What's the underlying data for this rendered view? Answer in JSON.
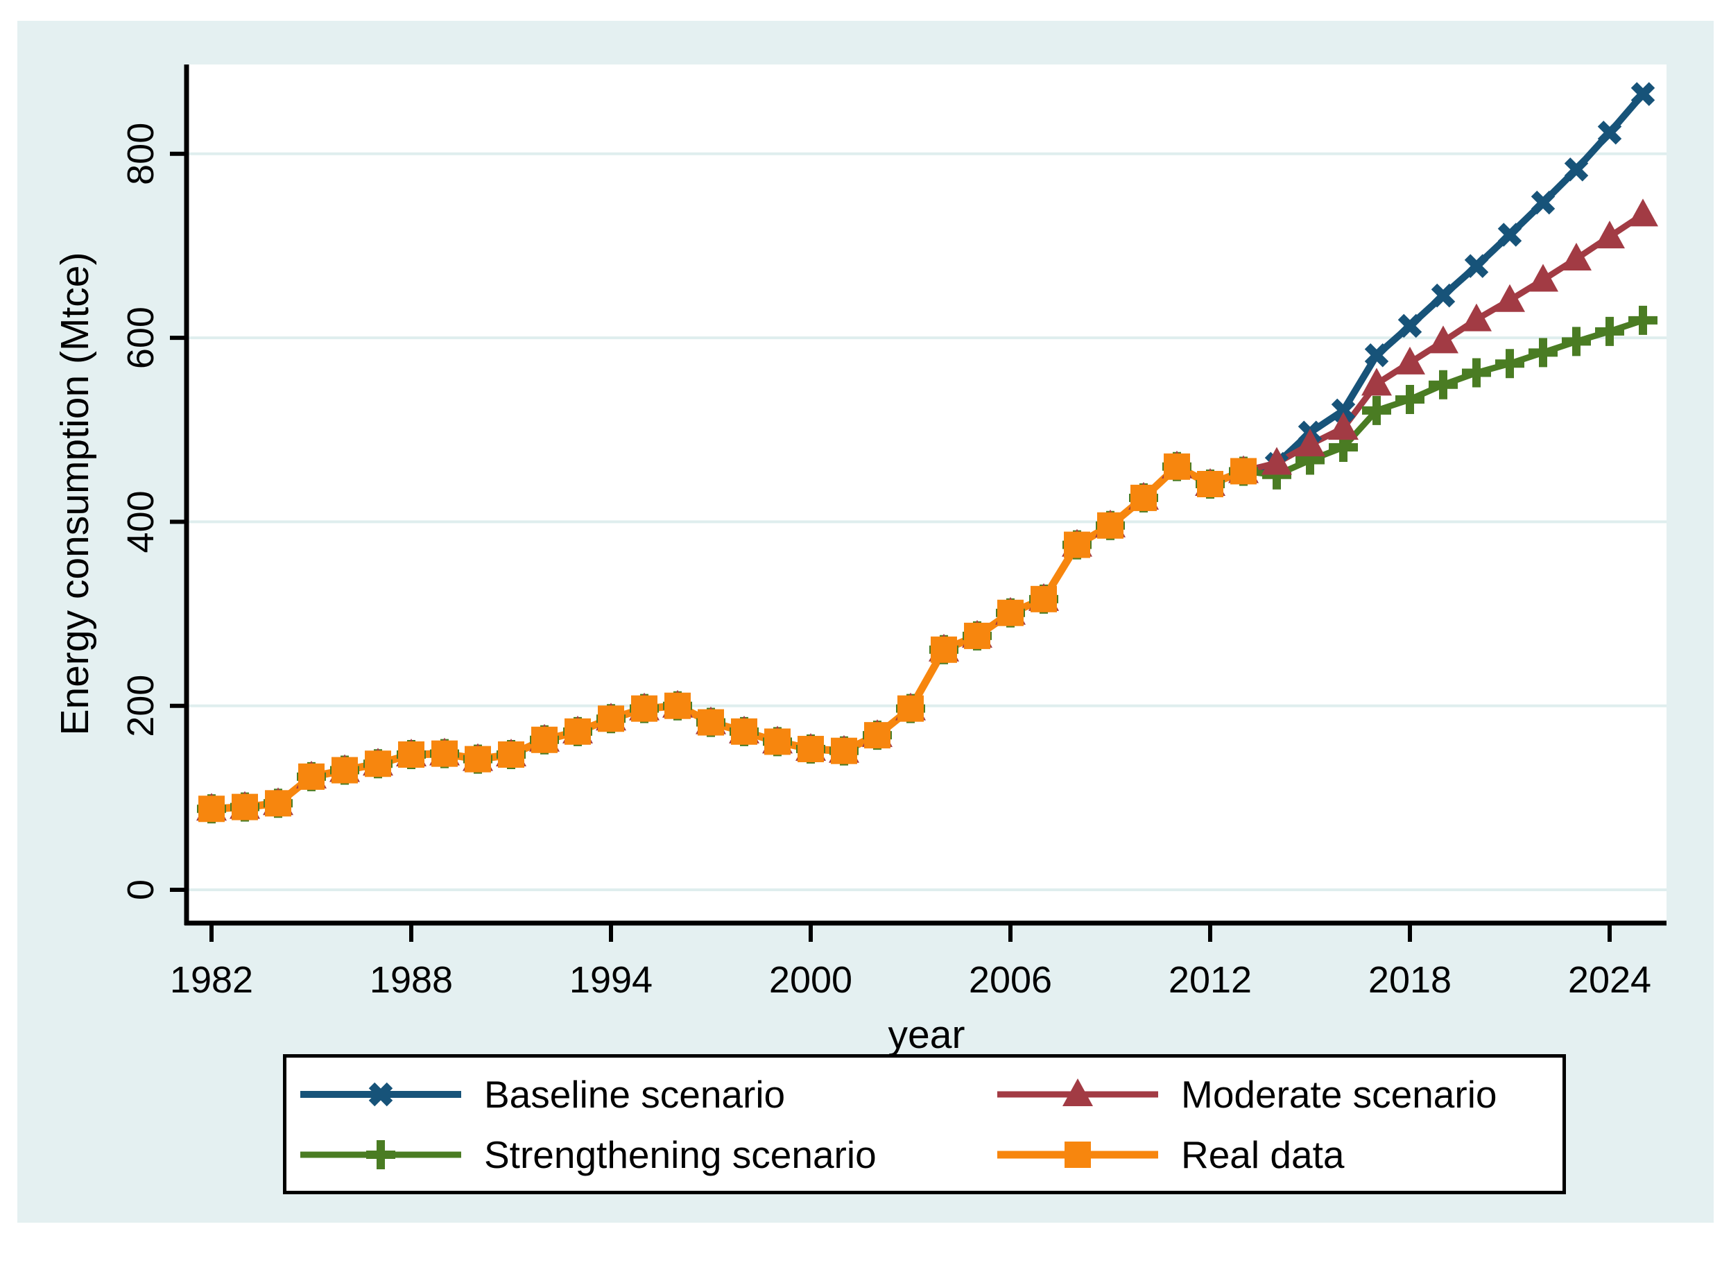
{
  "figure": {
    "background": "#ffffff",
    "graph_area_background": "#e4f0f1",
    "plot_background": "#ffffff",
    "gridline_color": "#dfeeee",
    "axis_color": "#000000",
    "text_color": "#000000",
    "legend_background": "#ffffff",
    "legend_border_color": "#000000"
  },
  "y_axis": {
    "title": "Energy consumption (Mtce)",
    "ticks": [
      0,
      200,
      400,
      600,
      800
    ]
  },
  "x_axis": {
    "title": "year",
    "ticks": [
      1982,
      1988,
      1994,
      2000,
      2006,
      2012,
      2018,
      2024
    ]
  },
  "legend": {
    "entries": [
      {
        "id": "baseline",
        "label": "Baseline scenario"
      },
      {
        "id": "moderate",
        "label": "Moderate scenario"
      },
      {
        "id": "strengthening",
        "label": "Strengthening scenario"
      },
      {
        "id": "real",
        "label": "Real data"
      }
    ]
  },
  "chart_data": {
    "type": "line",
    "title": "",
    "xlabel": "year",
    "ylabel": "Energy consumption (Mtce)",
    "x_range": [
      1980.7,
      2026.5
    ],
    "y_range": [
      -35,
      897
    ],
    "grid": "horizontal",
    "legend_position": "bottom",
    "series": [
      {
        "id": "baseline",
        "name": "Baseline scenario",
        "color": "#175379",
        "marker": "x",
        "years": [
          1982,
          1983,
          1984,
          1985,
          1986,
          1987,
          1988,
          1989,
          1990,
          1991,
          1992,
          1993,
          1994,
          1995,
          1996,
          1997,
          1998,
          1999,
          2000,
          2001,
          2002,
          2003,
          2004,
          2005,
          2006,
          2007,
          2008,
          2009,
          2010,
          2011,
          2012,
          2013,
          2014,
          2015,
          2016,
          2017,
          2018,
          2019,
          2020,
          2021,
          2022,
          2023,
          2024,
          2025
        ],
        "values": [
          88,
          90,
          94,
          123,
          130,
          137,
          147,
          148,
          142,
          147,
          163,
          172,
          186,
          197,
          200,
          182,
          172,
          161,
          153,
          151,
          168,
          197,
          261,
          276,
          301,
          316,
          375,
          396,
          426,
          460,
          441,
          455,
          463,
          497,
          521,
          581,
          613,
          646,
          678,
          712,
          747,
          783,
          823,
          865
        ]
      },
      {
        "id": "moderate",
        "name": "Moderate scenario",
        "color": "#a23b44",
        "marker": "triangle",
        "years": [
          1982,
          1983,
          1984,
          1985,
          1986,
          1987,
          1988,
          1989,
          1990,
          1991,
          1992,
          1993,
          1994,
          1995,
          1996,
          1997,
          1998,
          1999,
          2000,
          2001,
          2002,
          2003,
          2004,
          2005,
          2006,
          2007,
          2008,
          2009,
          2010,
          2011,
          2012,
          2013,
          2014,
          2015,
          2016,
          2017,
          2018,
          2019,
          2020,
          2021,
          2022,
          2023,
          2024,
          2025
        ],
        "values": [
          88,
          90,
          94,
          123,
          130,
          137,
          147,
          148,
          142,
          147,
          163,
          172,
          186,
          197,
          200,
          182,
          172,
          161,
          153,
          151,
          168,
          197,
          261,
          276,
          301,
          316,
          375,
          396,
          426,
          460,
          441,
          455,
          464,
          484,
          502,
          550,
          573,
          596,
          620,
          641,
          663,
          686,
          710,
          734
        ]
      },
      {
        "id": "strengthening",
        "name": "Strengthening scenario",
        "color": "#4a7c23",
        "marker": "plus",
        "years": [
          1982,
          1983,
          1984,
          1985,
          1986,
          1987,
          1988,
          1989,
          1990,
          1991,
          1992,
          1993,
          1994,
          1995,
          1996,
          1997,
          1998,
          1999,
          2000,
          2001,
          2002,
          2003,
          2004,
          2005,
          2006,
          2007,
          2008,
          2009,
          2010,
          2011,
          2012,
          2013,
          2014,
          2015,
          2016,
          2017,
          2018,
          2019,
          2020,
          2021,
          2022,
          2023,
          2024,
          2025
        ],
        "values": [
          88,
          90,
          94,
          123,
          130,
          137,
          147,
          148,
          142,
          147,
          163,
          172,
          186,
          197,
          200,
          182,
          172,
          161,
          153,
          151,
          168,
          197,
          261,
          276,
          301,
          316,
          375,
          396,
          426,
          460,
          441,
          455,
          451,
          467,
          481,
          521,
          533,
          549,
          562,
          572,
          584,
          596,
          607,
          619
        ]
      },
      {
        "id": "real",
        "name": "Real data",
        "color": "#f7860e",
        "marker": "square",
        "years": [
          1982,
          1983,
          1984,
          1985,
          1986,
          1987,
          1988,
          1989,
          1990,
          1991,
          1992,
          1993,
          1994,
          1995,
          1996,
          1997,
          1998,
          1999,
          2000,
          2001,
          2002,
          2003,
          2004,
          2005,
          2006,
          2007,
          2008,
          2009,
          2010,
          2011,
          2012,
          2013
        ],
        "values": [
          88,
          90,
          94,
          123,
          130,
          137,
          147,
          148,
          142,
          147,
          163,
          172,
          186,
          197,
          200,
          182,
          172,
          161,
          153,
          151,
          168,
          197,
          261,
          276,
          301,
          316,
          375,
          396,
          426,
          460,
          441,
          455
        ]
      }
    ]
  }
}
